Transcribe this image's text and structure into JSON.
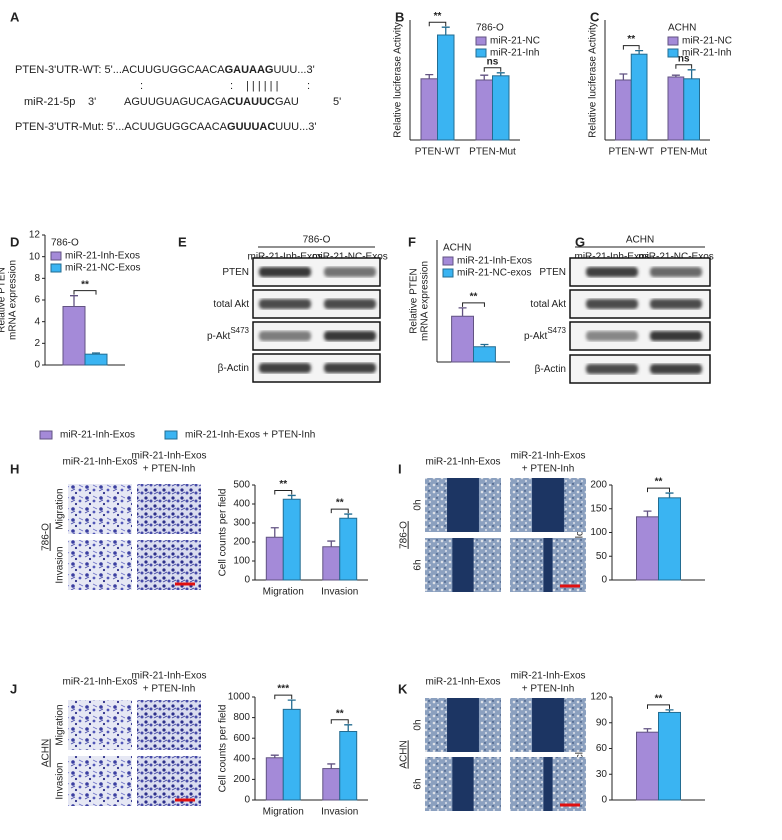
{
  "panel_labels": [
    "A",
    "B",
    "C",
    "D",
    "E",
    "F",
    "G",
    "H",
    "I",
    "J",
    "K"
  ],
  "sequences": {
    "wt": [
      "PTEN-3'UTR-WT: 5'...ACUUGUGGCAACA",
      "GAUAAG",
      "UUU...3'"
    ],
    "pairing": [
      ":",
      ":",
      "| | | | | |",
      ":"
    ],
    "mir": [
      "miR-21-5p",
      "3'",
      "AGUUGUAGUCAGA",
      "CUAUUC",
      "GAU",
      "5'"
    ],
    "mut": [
      "PTEN-3'UTR-Mut: 5'...ACUUGUGGCAACA",
      "GUUUAC",
      "UUU...3'"
    ]
  },
  "blots": [
    {
      "cell_line": "786-O",
      "lanes": [
        "miR-21-Inh-Exos",
        "miR-21-NC-Exos"
      ],
      "rows": [
        {
          "label": "PTEN"
        },
        {
          "label": "total Akt"
        },
        {
          "label": "p-Akt",
          "sup": "S473"
        },
        {
          "label": "β-Actin"
        }
      ]
    },
    {
      "cell_line": "ACHN",
      "lanes": [
        "miR-21-Inh-Exos",
        "miR-21-NC-Exos"
      ],
      "rows": [
        {
          "label": "PTEN"
        },
        {
          "label": "total Akt"
        },
        {
          "label": "p-Akt",
          "sup": "S473"
        },
        {
          "label": "β-Actin"
        }
      ]
    }
  ],
  "images": [
    {
      "cell_line": "786-O",
      "columns": [
        [
          "miR-21-Inh-Exos"
        ],
        [
          "miR-21-Inh-Exos",
          "+ PTEN-Inh"
        ]
      ],
      "rows": [
        "Migration",
        "Invasion"
      ],
      "kind": "transwell"
    },
    {
      "cell_line": "786-O",
      "columns": [
        [
          "miR-21-Inh-Exos"
        ],
        [
          "miR-21-Inh-Exos",
          "+ PTEN-Inh"
        ]
      ],
      "rows": [
        "0h",
        "6h"
      ],
      "kind": "wound"
    },
    {
      "cell_line": "ACHN",
      "columns": [
        [
          "miR-21-Inh-Exos"
        ],
        [
          "miR-21-Inh-Exos",
          "+ PTEN-Inh"
        ]
      ],
      "rows": [
        "Migration",
        "Invasion"
      ],
      "kind": "transwell"
    },
    {
      "cell_line": "ACHN",
      "columns": [
        [
          "miR-21-Inh-Exos"
        ],
        [
          "miR-21-Inh-Exos",
          "+ PTEN-Inh"
        ]
      ],
      "rows": [
        "0h",
        "6h"
      ],
      "kind": "wound"
    }
  ],
  "chart_data": [
    {
      "type": "bar",
      "subtitle": "786-O",
      "ylabel": [
        "Relative luciferase Activity"
      ],
      "categories": [
        "PTEN-WT",
        "PTEN-Mut"
      ],
      "series": [
        {
          "name": "miR-21-NC",
          "color": "#a48ad8",
          "values": [
            1.02,
            1.0
          ],
          "errors": [
            0.07,
            0.08
          ]
        },
        {
          "name": "miR-21-Inh",
          "color": "#3ab4f2",
          "values": [
            1.75,
            1.07
          ],
          "errors": [
            0.13,
            0.05
          ]
        }
      ],
      "annotations": [
        "**",
        "ns"
      ],
      "ylim": [
        0,
        2
      ],
      "legend": "upper right"
    },
    {
      "type": "bar",
      "subtitle": "ACHN",
      "ylabel": [
        "Relative luciferase Activity"
      ],
      "categories": [
        "PTEN-WT",
        "PTEN-Mut"
      ],
      "series": [
        {
          "name": "miR-21-NC",
          "color": "#a48ad8",
          "values": [
            1.0,
            1.05
          ],
          "errors": [
            0.1,
            0.03
          ]
        },
        {
          "name": "miR-21-Inh",
          "color": "#3ab4f2",
          "values": [
            1.43,
            1.02
          ],
          "errors": [
            0.06,
            0.15
          ]
        }
      ],
      "annotations": [
        "**",
        "ns"
      ],
      "ylim": [
        0,
        2
      ],
      "legend": "upper right"
    },
    {
      "type": "bar",
      "subtitle": "786-O",
      "ylabel": [
        "Relative PTEN",
        "mRNA expression"
      ],
      "categories": [
        null
      ],
      "series": [
        {
          "name": "miR-21-Inh-Exos",
          "color": "#a48ad8",
          "values": [
            5.4
          ],
          "errors": [
            1.0
          ]
        },
        {
          "name": "miR-21-NC-Exos",
          "color": "#3ab4f2",
          "values": [
            1.0
          ],
          "errors": [
            0.1
          ]
        }
      ],
      "annotations": [
        "**"
      ],
      "ylim": [
        0,
        12
      ],
      "yticks": [
        0,
        2,
        4,
        6,
        8,
        10,
        12
      ],
      "legend": "upper left"
    },
    {
      "type": "bar",
      "subtitle": "ACHN",
      "ylabel": [
        "Relative PTEN",
        "mRNA expression"
      ],
      "categories": [
        null
      ],
      "series": [
        {
          "name": "miR-21-Inh-Exos",
          "color": "#a48ad8",
          "values": [
            3.0
          ],
          "errors": [
            0.55
          ]
        },
        {
          "name": "miR-21-NC-exos",
          "color": "#3ab4f2",
          "values": [
            1.0
          ],
          "errors": [
            0.15
          ]
        }
      ],
      "annotations": [
        "**"
      ],
      "ylim": [
        0,
        8
      ],
      "legend": "upper left"
    },
    {
      "type": "bar",
      "ylabel": [
        "Cell counts per field"
      ],
      "categories": [
        "Migration",
        "Invasion"
      ],
      "series": [
        {
          "name": "miR-21-Inh-Exos",
          "color": "#a48ad8",
          "values": [
            225,
            175
          ],
          "errors": [
            50,
            30
          ]
        },
        {
          "name": "miR-21-Inh-Exos + PTEN-Inh",
          "color": "#3ab4f2",
          "values": [
            425,
            325
          ],
          "errors": [
            20,
            22
          ]
        }
      ],
      "annotations": [
        "**",
        "**"
      ],
      "ylim": [
        0,
        500
      ],
      "yticks": [
        0,
        100,
        200,
        300,
        400,
        500
      ],
      "legend": "none"
    },
    {
      "type": "bar",
      "ylabel": [
        "Wound closure (μm)"
      ],
      "categories": [
        null
      ],
      "series": [
        {
          "color": "#a48ad8",
          "values": [
            133
          ],
          "errors": [
            12
          ]
        },
        {
          "color": "#3ab4f2",
          "values": [
            173
          ],
          "errors": [
            10
          ]
        }
      ],
      "annotations": [
        "**"
      ],
      "ylim": [
        0,
        200
      ],
      "yticks": [
        0,
        50,
        100,
        150,
        200
      ],
      "legend": "none"
    },
    {
      "type": "bar",
      "ylabel": [
        "Cell counts per field"
      ],
      "categories": [
        "Migration",
        "Invasion"
      ],
      "series": [
        {
          "color": "#a48ad8",
          "values": [
            410,
            305
          ],
          "errors": [
            25,
            45
          ]
        },
        {
          "color": "#3ab4f2",
          "values": [
            880,
            665
          ],
          "errors": [
            90,
            65
          ]
        }
      ],
      "annotations": [
        "***",
        "**"
      ],
      "ylim": [
        0,
        1000
      ],
      "yticks": [
        0,
        200,
        400,
        600,
        800,
        1000
      ],
      "legend": "none"
    },
    {
      "type": "bar",
      "ylabel": [
        "Wound closure (μm)"
      ],
      "categories": [
        null
      ],
      "series": [
        {
          "color": "#a48ad8",
          "values": [
            79
          ],
          "errors": [
            4
          ]
        },
        {
          "color": "#3ab4f2",
          "values": [
            102
          ],
          "errors": [
            3
          ]
        }
      ],
      "annotations": [
        "**"
      ],
      "ylim": [
        0,
        120
      ],
      "yticks": [
        0,
        30,
        60,
        90,
        120
      ],
      "legend": "none"
    }
  ]
}
